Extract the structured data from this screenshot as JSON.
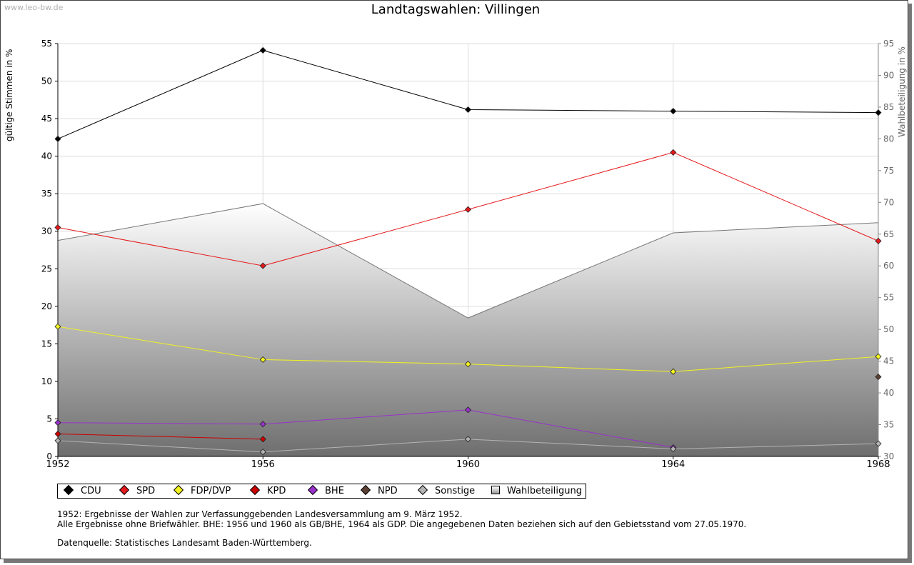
{
  "header": {
    "watermark": "www.leo-bw.de",
    "title": "Landtagswahlen: Villingen"
  },
  "chart_data": {
    "type": "line",
    "title": "Landtagswahlen: Villingen",
    "categories": [
      "1952",
      "1956",
      "1960",
      "1964",
      "1968"
    ],
    "y_left": {
      "label": "gültige Stimmen in %",
      "min": 0,
      "max": 55,
      "ticks": [
        0,
        5,
        10,
        15,
        20,
        25,
        30,
        35,
        40,
        45,
        50,
        55
      ]
    },
    "y_right": {
      "label": "Wahlbeteiligung in %",
      "min": 30,
      "max": 95,
      "ticks": [
        30,
        35,
        40,
        45,
        50,
        55,
        60,
        65,
        70,
        75,
        80,
        85,
        90,
        95
      ]
    },
    "grid": true,
    "series": [
      {
        "name": "CDU",
        "color": "#000000",
        "values": [
          42.3,
          54.1,
          46.2,
          46.0,
          45.8
        ]
      },
      {
        "name": "SPD",
        "color": "#e41a1c",
        "values": [
          30.5,
          25.4,
          32.9,
          40.5,
          28.7
        ]
      },
      {
        "name": "FDP/DVP",
        "color": "#f2f21f",
        "values": [
          17.3,
          12.9,
          12.3,
          11.3,
          13.3
        ]
      },
      {
        "name": "KPD",
        "color": "#cc0000",
        "values": [
          3.0,
          2.3,
          null,
          null,
          null
        ]
      },
      {
        "name": "BHE",
        "color": "#9932cc",
        "values": [
          4.5,
          4.3,
          6.2,
          1.2,
          null
        ]
      },
      {
        "name": "NPD",
        "color": "#5c4033",
        "values": [
          null,
          null,
          null,
          null,
          10.6
        ]
      },
      {
        "name": "Sonstige",
        "color": "#b3b3b3",
        "values": [
          2.1,
          0.6,
          2.3,
          1.0,
          1.7
        ]
      }
    ],
    "area_series": {
      "name": "Wahlbeteiligung",
      "axis": "right",
      "values": [
        64.0,
        69.8,
        51.8,
        65.2,
        66.8
      ]
    },
    "legend": [
      "CDU",
      "SPD",
      "FDP/DVP",
      "KPD",
      "BHE",
      "NPD",
      "Sonstige",
      "Wahlbeteiligung"
    ],
    "legend_position": "bottom"
  },
  "notes": {
    "line1": "1952: Ergebnisse der Wahlen zur Verfassunggebenden Landesversammlung am 9. März 1952.",
    "line2": "Alle Ergebnisse ohne Briefwähler. BHE: 1956 und 1960 als GB/BHE, 1964 als GDP. Die angegebenen Daten beziehen sich auf den Gebietsstand vom 27.05.1970.",
    "line3": "Datenquelle: Statistisches Landesamt Baden-Württemberg."
  }
}
